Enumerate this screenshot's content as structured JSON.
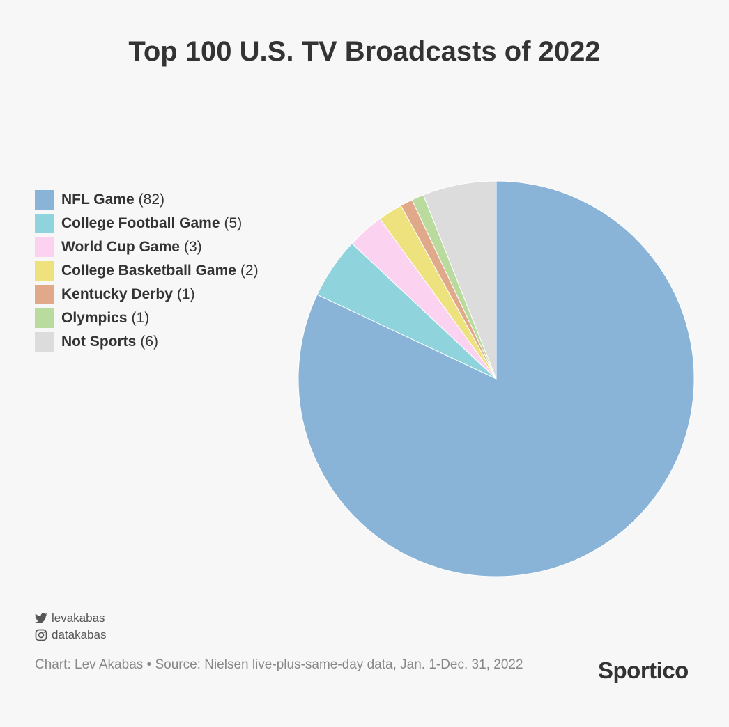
{
  "title": "Top 100 U.S. TV Broadcasts of 2022",
  "chart_data": {
    "type": "pie",
    "title": "Top 100 U.S. TV Broadcasts of 2022",
    "legend_position": "left",
    "slices": [
      {
        "label": "NFL Game",
        "value": 82,
        "count_text": "(82)",
        "color": "#8ab3d8"
      },
      {
        "label": "College Football Game",
        "value": 5,
        "count_text": "(5)",
        "color": "#8fd4dc"
      },
      {
        "label": "World Cup Game",
        "value": 3,
        "count_text": "(3)",
        "color": "#fcd2f1"
      },
      {
        "label": "College Basketball Game",
        "value": 2,
        "count_text": "(2)",
        "color": "#ede27e"
      },
      {
        "label": "Kentucky Derby",
        "value": 1,
        "count_text": "(1)",
        "color": "#e0a98a"
      },
      {
        "label": "Olympics",
        "value": 1,
        "count_text": "(1)",
        "color": "#badb9e"
      },
      {
        "label": "Not Sports",
        "value": 6,
        "count_text": "(6)",
        "color": "#dcdcdc"
      }
    ]
  },
  "social": {
    "twitter_handle": "levakabas",
    "instagram_handle": "datakabas",
    "twitter_icon": "twitter-icon",
    "instagram_icon": "instagram-icon"
  },
  "footer": {
    "source": "Chart: Lev Akabas • Source: Nielsen live-plus-same-day data, Jan. 1-Dec. 31, 2022",
    "brand": "Sportico"
  }
}
